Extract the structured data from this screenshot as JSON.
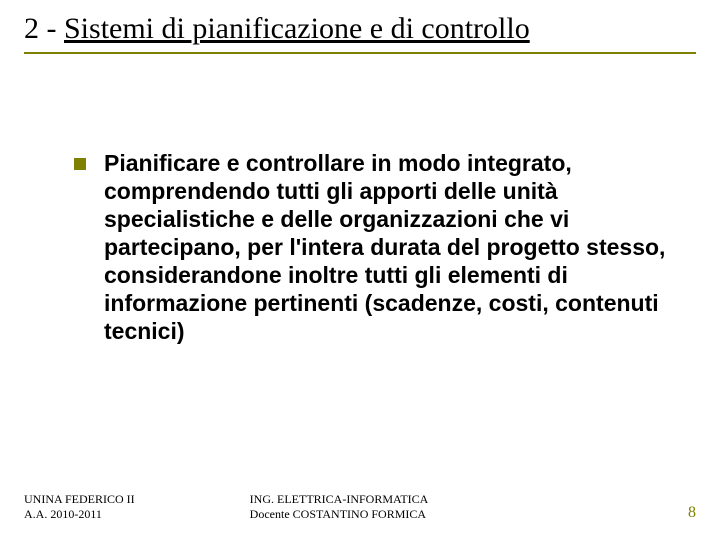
{
  "title": {
    "number": "2 - ",
    "text": "Sistemi di pianificazione e di controllo",
    "underline_color": "#808000"
  },
  "bullet": {
    "marker_color": "#808000",
    "text": "Pianificare e controllare in modo integrato, comprendendo tutti gli apporti delle unità specialistiche e delle organizzazioni che vi partecipano, per l'intera durata del progetto stesso, considerandone inoltre tutti gli elementi di informazione pertinenti (scadenze, costi, contenuti tecnici)"
  },
  "footer": {
    "left_line1": "UNINA FEDERICO II",
    "left_line2": "A.A. 2010-2011",
    "center_line1": "ING. ELETTRICA-INFORMATICA",
    "center_line2": "Docente COSTANTINO FORMICA",
    "page_number": "8",
    "page_number_color": "#808000"
  }
}
